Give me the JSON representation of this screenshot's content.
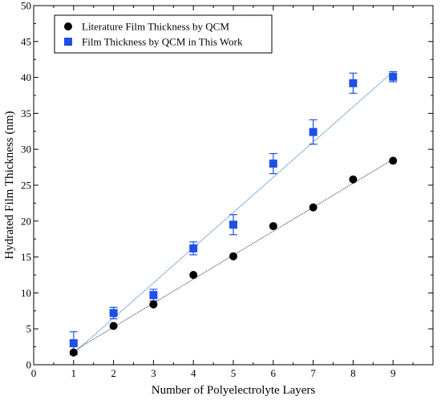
{
  "chart_data": {
    "type": "scatter",
    "xlabel": "Number of Polyelectrolyte Layers",
    "ylabel": "Hydrated Film Thickness (nm)",
    "xlim": [
      0,
      10
    ],
    "ylim": [
      0,
      50
    ],
    "x_ticks": [
      "0",
      "1",
      "2",
      "3",
      "4",
      "5",
      "6",
      "7",
      "8",
      "9"
    ],
    "y_ticks": [
      "0",
      "5",
      "10",
      "15",
      "20",
      "25",
      "30",
      "35",
      "40",
      "45",
      "50"
    ],
    "grid": false,
    "legend_position": "top-left",
    "series": [
      {
        "name": "Literature Film Thickness by QCM",
        "marker": "circle",
        "color": "#000000",
        "line_color": "#555555",
        "x": [
          1,
          2,
          3,
          4,
          5,
          6,
          7,
          8,
          9
        ],
        "y": [
          1.7,
          5.4,
          8.4,
          12.5,
          15.1,
          19.3,
          21.9,
          25.8,
          28.4
        ],
        "fit": [
          [
            1,
            1.9
          ],
          [
            9,
            28.6
          ]
        ]
      },
      {
        "name": "Film Thickness by QCM in This Work",
        "marker": "square",
        "color": "#1E50E6",
        "line_color": "#3A7FD5",
        "x": [
          1,
          2,
          3,
          4,
          5,
          6,
          7,
          8,
          9
        ],
        "y": [
          3.0,
          7.2,
          9.7,
          16.2,
          19.5,
          28.0,
          32.4,
          39.2,
          40.1
        ],
        "error": [
          1.6,
          0.8,
          0.8,
          0.9,
          1.4,
          1.4,
          1.7,
          1.4,
          0.7
        ],
        "fit": [
          [
            1,
            1.6
          ],
          [
            9,
            40.8
          ]
        ]
      }
    ]
  }
}
